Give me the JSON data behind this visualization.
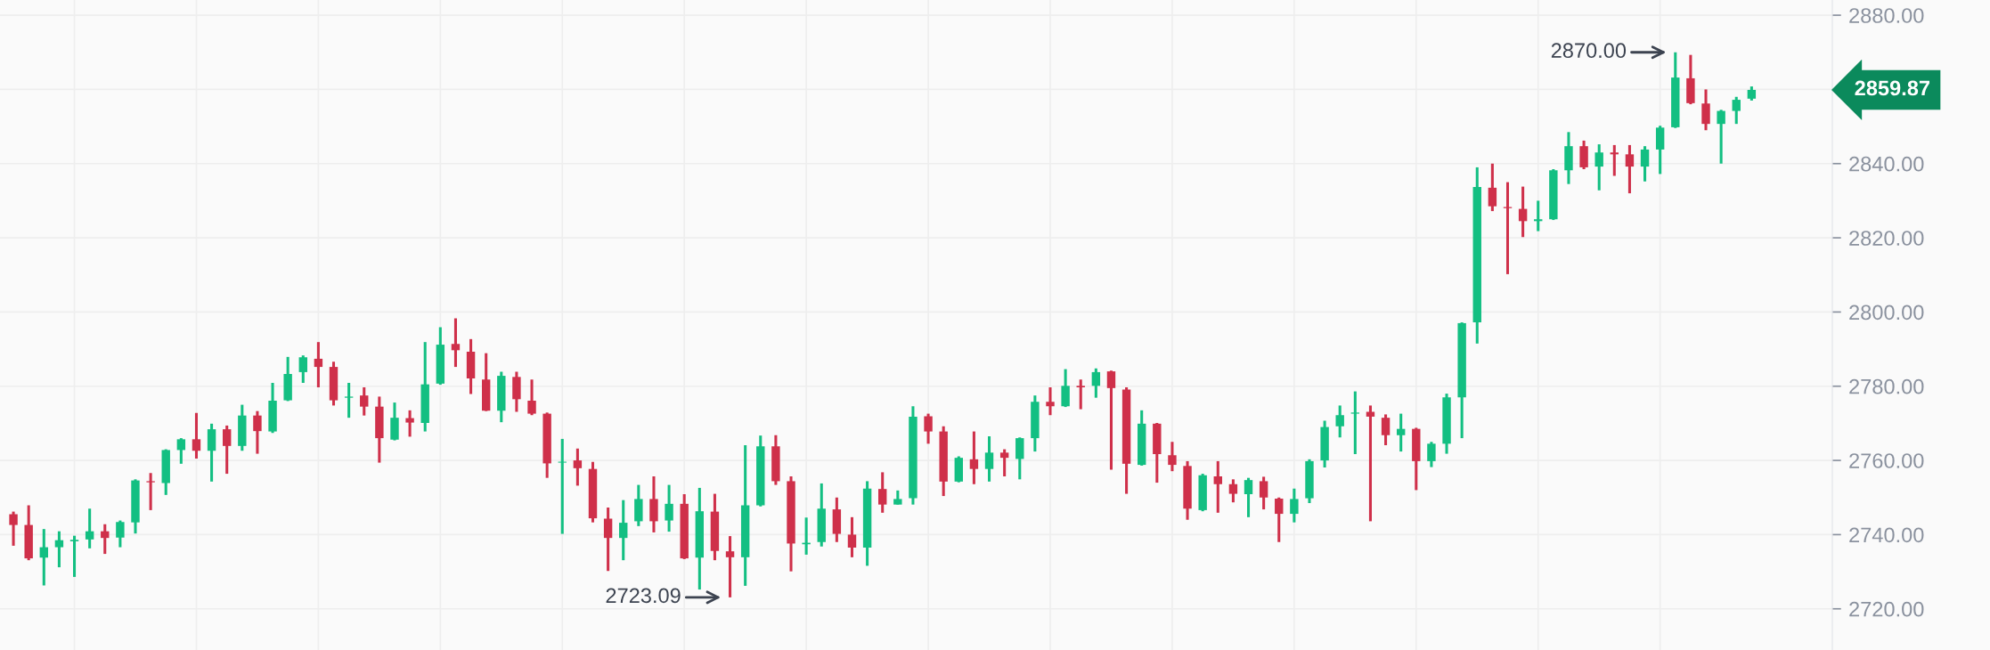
{
  "chart_data": {
    "type": "candlestick",
    "categories": [
      null,
      null,
      null,
      null,
      null,
      null,
      null,
      null,
      null,
      null,
      null,
      null,
      null,
      null,
      null,
      null,
      null,
      null,
      null,
      null,
      null,
      null,
      null,
      null,
      null,
      null,
      null,
      null,
      null,
      null,
      null,
      null,
      null,
      null,
      null,
      null,
      null,
      null,
      null,
      null,
      null,
      null,
      null,
      null,
      null,
      null,
      null,
      null,
      null,
      null,
      null,
      null,
      null,
      null,
      null,
      null,
      null,
      null,
      null,
      null,
      null,
      null,
      null,
      null,
      null,
      null,
      null,
      null,
      null,
      null,
      null,
      null,
      null,
      null,
      null,
      null,
      null,
      null,
      null,
      null,
      null,
      null,
      null,
      null,
      null,
      null,
      null,
      null,
      null,
      null,
      null,
      null,
      null,
      null,
      null,
      null,
      null,
      null,
      null,
      null,
      null,
      null,
      null,
      null,
      null,
      null,
      null,
      null,
      null,
      null,
      null,
      null,
      null,
      null,
      null
    ],
    "ohlc": [
      [
        2745.5,
        2746.2,
        2737.0,
        2742.6
      ],
      [
        2742.6,
        2747.9,
        2733.1,
        2733.6
      ],
      [
        2733.8,
        2741.5,
        2726.3,
        2736.6
      ],
      [
        2736.6,
        2740.9,
        2731.2,
        2738.5
      ],
      [
        2738.2,
        2739.7,
        2728.6,
        2738.6
      ],
      [
        2738.7,
        2747.0,
        2736.3,
        2740.9
      ],
      [
        2740.9,
        2742.8,
        2734.8,
        2739.1
      ],
      [
        2739.2,
        2743.8,
        2736.6,
        2743.4
      ],
      [
        2743.3,
        2754.9,
        2740.3,
        2754.6
      ],
      [
        2754.4,
        2756.6,
        2746.6,
        2754.1
      ],
      [
        2753.9,
        2763.0,
        2750.7,
        2762.8
      ],
      [
        2762.8,
        2766.0,
        2759.1,
        2765.7
      ],
      [
        2765.7,
        2772.8,
        2760.5,
        2762.6
      ],
      [
        2762.6,
        2769.9,
        2754.3,
        2768.4
      ],
      [
        2768.4,
        2769.4,
        2756.4,
        2763.9
      ],
      [
        2763.9,
        2775.0,
        2762.6,
        2772.1
      ],
      [
        2772.1,
        2773.3,
        2761.8,
        2767.9
      ],
      [
        2767.8,
        2780.9,
        2767.4,
        2776.1
      ],
      [
        2776.2,
        2787.9,
        2776.0,
        2783.3
      ],
      [
        2783.8,
        2788.3,
        2780.9,
        2787.8
      ],
      [
        2787.4,
        2791.9,
        2779.7,
        2785.2
      ],
      [
        2785.2,
        2786.6,
        2774.8,
        2776.2
      ],
      [
        2776.9,
        2780.9,
        2771.5,
        2777.2
      ],
      [
        2777.5,
        2779.7,
        2772.1,
        2774.5
      ],
      [
        2774.5,
        2777.2,
        2759.4,
        2766.0
      ],
      [
        2765.6,
        2775.6,
        2765.4,
        2771.5
      ],
      [
        2771.4,
        2773.5,
        2766.4,
        2770.2
      ],
      [
        2770.1,
        2791.9,
        2767.8,
        2780.5
      ],
      [
        2780.7,
        2795.9,
        2780.4,
        2791.2
      ],
      [
        2791.4,
        2798.3,
        2785.2,
        2789.7
      ],
      [
        2789.3,
        2792.7,
        2777.9,
        2782.1
      ],
      [
        2781.8,
        2788.9,
        2773.3,
        2773.4
      ],
      [
        2773.4,
        2783.9,
        2770.3,
        2782.8
      ],
      [
        2782.5,
        2783.9,
        2773.1,
        2776.5
      ],
      [
        2776.1,
        2781.8,
        2772.2,
        2772.6
      ],
      [
        2772.6,
        2772.9,
        2755.3,
        2759.2
      ],
      [
        2759.4,
        2765.8,
        2740.2,
        2759.6
      ],
      [
        2760.0,
        2763.2,
        2753.2,
        2757.9
      ],
      [
        2757.7,
        2759.6,
        2743.3,
        2744.4
      ],
      [
        2744.3,
        2747.3,
        2730.2,
        2739.1
      ],
      [
        2739.1,
        2749.3,
        2733.1,
        2743.2
      ],
      [
        2743.6,
        2753.4,
        2742.3,
        2749.6
      ],
      [
        2749.6,
        2755.7,
        2740.6,
        2743.6
      ],
      [
        2743.8,
        2753.4,
        2740.8,
        2748.3
      ],
      [
        2748.3,
        2750.9,
        2733.4,
        2733.6
      ],
      [
        2733.8,
        2752.6,
        2725.2,
        2746.3
      ],
      [
        2746.2,
        2751.0,
        2733.1,
        2735.6
      ],
      [
        2735.5,
        2739.6,
        2723.09,
        2733.9
      ],
      [
        2733.9,
        2764.1,
        2726.2,
        2747.9
      ],
      [
        2747.9,
        2766.7,
        2747.6,
        2763.8
      ],
      [
        2763.8,
        2766.8,
        2753.4,
        2754.4
      ],
      [
        2754.4,
        2755.7,
        2730.1,
        2737.6
      ],
      [
        2737.4,
        2744.6,
        2734.6,
        2737.8
      ],
      [
        2738.0,
        2753.8,
        2736.8,
        2747.0
      ],
      [
        2746.8,
        2750.0,
        2738.0,
        2740.2
      ],
      [
        2740.0,
        2744.7,
        2733.9,
        2736.5
      ],
      [
        2736.5,
        2754.4,
        2731.6,
        2752.4
      ],
      [
        2752.3,
        2756.8,
        2745.9,
        2748.1
      ],
      [
        2748.1,
        2751.9,
        2748.1,
        2749.6
      ],
      [
        2749.8,
        2774.6,
        2748.1,
        2771.8
      ],
      [
        2771.9,
        2772.6,
        2764.5,
        2767.8
      ],
      [
        2767.8,
        2769.2,
        2750.4,
        2754.3
      ],
      [
        2754.3,
        2761.1,
        2754.1,
        2760.7
      ],
      [
        2760.3,
        2767.8,
        2753.6,
        2757.7
      ],
      [
        2757.7,
        2766.5,
        2754.3,
        2762.1
      ],
      [
        2762.1,
        2763.0,
        2755.7,
        2760.7
      ],
      [
        2760.4,
        2766.2,
        2754.9,
        2766.0
      ],
      [
        2766.0,
        2777.5,
        2762.4,
        2775.8
      ],
      [
        2775.8,
        2779.7,
        2772.2,
        2774.6
      ],
      [
        2774.6,
        2784.6,
        2774.4,
        2780.1
      ],
      [
        2780.1,
        2781.8,
        2773.8,
        2779.7
      ],
      [
        2780.1,
        2784.8,
        2776.9,
        2783.8
      ],
      [
        2784.0,
        2784.2,
        2757.5,
        2779.5
      ],
      [
        2779.1,
        2779.7,
        2751.0,
        2759.1
      ],
      [
        2758.8,
        2773.5,
        2758.6,
        2769.9
      ],
      [
        2769.9,
        2770.1,
        2754.0,
        2761.7
      ],
      [
        2761.4,
        2765.0,
        2757.1,
        2758.8
      ],
      [
        2758.5,
        2759.8,
        2744.0,
        2747.0
      ],
      [
        2746.6,
        2756.4,
        2746.3,
        2756.0
      ],
      [
        2755.7,
        2759.8,
        2745.9,
        2753.6
      ],
      [
        2753.6,
        2754.9,
        2748.7,
        2751.0
      ],
      [
        2750.9,
        2755.3,
        2744.7,
        2754.7
      ],
      [
        2754.4,
        2755.6,
        2746.8,
        2750.0
      ],
      [
        2749.7,
        2750.0,
        2738.0,
        2745.6
      ],
      [
        2745.6,
        2752.4,
        2743.3,
        2749.6
      ],
      [
        2749.8,
        2760.3,
        2748.5,
        2759.8
      ],
      [
        2760.0,
        2770.7,
        2758.1,
        2769.0
      ],
      [
        2769.2,
        2774.8,
        2766.2,
        2772.2
      ],
      [
        2772.6,
        2778.6,
        2761.7,
        2772.9
      ],
      [
        2773.1,
        2774.8,
        2743.6,
        2771.8
      ],
      [
        2771.5,
        2772.4,
        2764.1,
        2766.8
      ],
      [
        2766.8,
        2772.6,
        2762.4,
        2768.5
      ],
      [
        2768.5,
        2768.8,
        2752.0,
        2759.8
      ],
      [
        2759.8,
        2765.0,
        2758.2,
        2764.5
      ],
      [
        2764.5,
        2778.0,
        2761.8,
        2777.0
      ],
      [
        2777.0,
        2797.2,
        2766.0,
        2797.0
      ],
      [
        2797.2,
        2839.0,
        2791.5,
        2833.7
      ],
      [
        2833.5,
        2840.0,
        2827.2,
        2828.5
      ],
      [
        2828.3,
        2835.0,
        2810.2,
        2828.0
      ],
      [
        2827.8,
        2833.8,
        2820.2,
        2824.5
      ],
      [
        2824.5,
        2830.0,
        2821.8,
        2825.0
      ],
      [
        2825.0,
        2838.5,
        2824.8,
        2838.2
      ],
      [
        2838.2,
        2848.5,
        2834.5,
        2844.7
      ],
      [
        2844.7,
        2846.2,
        2838.5,
        2839.0
      ],
      [
        2839.2,
        2845.2,
        2832.8,
        2843.0
      ],
      [
        2843.0,
        2845.0,
        2836.7,
        2842.5
      ],
      [
        2842.5,
        2845.0,
        2832.0,
        2839.2
      ],
      [
        2839.2,
        2844.7,
        2835.2,
        2843.8
      ],
      [
        2843.8,
        2850.2,
        2837.2,
        2849.7
      ],
      [
        2849.8,
        2870.0,
        2849.6,
        2863.2
      ],
      [
        2863.0,
        2869.3,
        2856.0,
        2856.3
      ],
      [
        2856.2,
        2860.0,
        2849.0,
        2850.7
      ],
      [
        2850.7,
        2854.5,
        2840.0,
        2854.2
      ],
      [
        2854.2,
        2858.0,
        2850.7,
        2857.2
      ],
      [
        2857.5,
        2860.8,
        2857.0,
        2859.87
      ]
    ],
    "colors": [
      "#cf304a",
      "#cf304a",
      "#13bf82",
      "#13bf82",
      "#13bf82",
      "#13bf82",
      "#cf304a",
      "#13bf82",
      "#13bf82",
      "#cf304a",
      "#13bf82",
      "#13bf82",
      "#cf304a",
      "#13bf82",
      "#cf304a",
      "#13bf82",
      "#cf304a",
      "#13bf82",
      "#13bf82",
      "#13bf82",
      "#cf304a",
      "#cf304a",
      "#13bf82",
      "#cf304a",
      "#cf304a",
      "#13bf82",
      "#cf304a",
      "#13bf82",
      "#13bf82",
      "#cf304a",
      "#cf304a",
      "#cf304a",
      "#13bf82",
      "#cf304a",
      "#cf304a",
      "#cf304a",
      "#13bf82",
      "#cf304a",
      "#cf304a",
      "#cf304a",
      "#13bf82",
      "#13bf82",
      "#cf304a",
      "#13bf82",
      "#cf304a",
      "#13bf82",
      "#cf304a",
      "#cf304a",
      "#13bf82",
      "#13bf82",
      "#cf304a",
      "#cf304a",
      "#13bf82",
      "#13bf82",
      "#cf304a",
      "#cf304a",
      "#13bf82",
      "#cf304a",
      "#13bf82",
      "#13bf82",
      "#cf304a",
      "#cf304a",
      "#13bf82",
      "#cf304a",
      "#13bf82",
      "#cf304a",
      "#13bf82",
      "#13bf82",
      "#cf304a",
      "#13bf82",
      "#cf304a",
      "#13bf82",
      "#cf304a",
      "#cf304a",
      "#13bf82",
      "#cf304a",
      "#cf304a",
      "#cf304a",
      "#13bf82",
      "#cf304a",
      "#cf304a",
      "#13bf82",
      "#cf304a",
      "#cf304a",
      "#13bf82",
      "#13bf82",
      "#13bf82",
      "#13bf82",
      "#13bf82",
      "#cf304a",
      "#cf304a",
      "#13bf82",
      "#cf304a",
      "#13bf82",
      "#13bf82",
      "#13bf82",
      "#13bf82",
      "#cf304a",
      "#cf304a",
      "#cf304a",
      "#13bf82",
      "#13bf82",
      "#13bf82",
      "#cf304a",
      "#13bf82",
      "#cf304a",
      "#cf304a",
      "#13bf82",
      "#13bf82",
      "#13bf82",
      "#cf304a",
      "#cf304a",
      "#13bf82",
      "#13bf82",
      "#13bf82"
    ],
    "ylim": [
      2708.9,
      2884.1
    ],
    "yticks": [
      {
        "value": 2720,
        "label": "2720.00"
      },
      {
        "value": 2740,
        "label": "2740.00"
      },
      {
        "value": 2760,
        "label": "2760.00"
      },
      {
        "value": 2780,
        "label": "2780.00"
      },
      {
        "value": 2800,
        "label": "2800.00"
      },
      {
        "value": 2820,
        "label": "2820.00"
      },
      {
        "value": 2840,
        "label": "2840.00"
      },
      {
        "value": 2860,
        "label": null
      },
      {
        "value": 2880,
        "label": "2880.00"
      }
    ],
    "annotations": [
      "2723.09",
      "2870.00",
      "2859.87"
    ],
    "grid": true,
    "tick_labels": "y"
  }
}
